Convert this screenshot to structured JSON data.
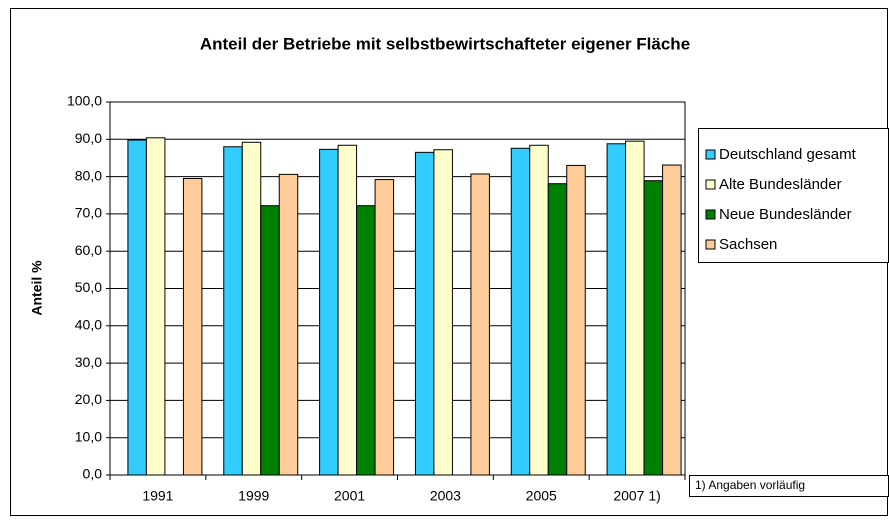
{
  "chart_data": {
    "type": "bar",
    "title": "Anteil der Betriebe mit selbstbewirtschafteter eigener Fläche",
    "y_label": "Anteil %",
    "note": "1) Angaben vorläufig",
    "categories": [
      "1991",
      "1999",
      "2001",
      "2003",
      "2005",
      "2007 1)"
    ],
    "series": [
      {
        "name": "Deutschland gesamt",
        "color": "#33ccff",
        "values": [
          89.8,
          88.0,
          87.3,
          86.5,
          87.6,
          88.8
        ]
      },
      {
        "name": "Alte Bundesländer",
        "color": "#ffffcc",
        "values": [
          90.4,
          89.2,
          88.4,
          87.2,
          88.4,
          89.5
        ]
      },
      {
        "name": "Neue Bundesländer",
        "color": "#008000",
        "values": [
          null,
          72.2,
          72.2,
          null,
          78.1,
          78.9
        ]
      },
      {
        "name": "Sachsen",
        "color": "#ffcc99",
        "values": [
          79.5,
          80.6,
          79.2,
          80.7,
          83.0,
          83.1
        ]
      }
    ],
    "ylim": [
      0,
      100
    ],
    "yticks": [
      {
        "value": 0,
        "label": "0,0"
      },
      {
        "value": 10,
        "label": "10,0"
      },
      {
        "value": 20,
        "label": "20,0"
      },
      {
        "value": 30,
        "label": "30,0"
      },
      {
        "value": 40,
        "label": "40,0"
      },
      {
        "value": 50,
        "label": "50,0"
      },
      {
        "value": 60,
        "label": "60,0"
      },
      {
        "value": 70,
        "label": "70,0"
      },
      {
        "value": 80,
        "label": "80,0"
      },
      {
        "value": 90,
        "label": "90,0"
      },
      {
        "value": 100,
        "label": "100,0"
      }
    ],
    "grid": true,
    "legend": "right"
  }
}
